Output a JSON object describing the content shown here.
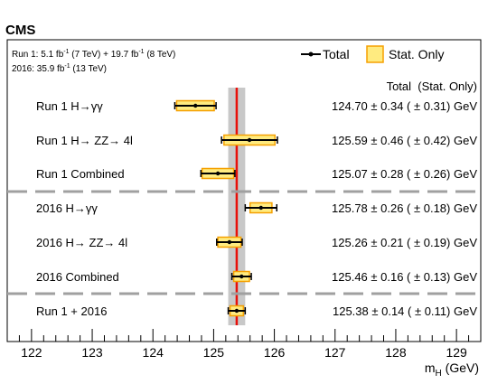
{
  "experiment": "CMS",
  "lumi_lines": [
    {
      "prefix": "Run 1: 5.1 fb",
      "sup1": "-1",
      "mid": " (7 TeV) + 19.7 fb",
      "sup2": "-1",
      "suffix": " (8 TeV)"
    },
    {
      "prefix": "2016: 35.9 fb",
      "sup1": "-1",
      "mid": " (13 TeV)",
      "sup2": "",
      "suffix": ""
    }
  ],
  "legend": {
    "total": "Total",
    "stat": "Stat. Only"
  },
  "column_header": "Total  (Stat. Only)",
  "chart_data": {
    "type": "scatter",
    "subtype": "horizontal-error-bar-summary",
    "xlabel_base": "m",
    "xlabel_sub": "H",
    "xlabel_unit": " (GeV)",
    "xlim": [
      121.6,
      129.4
    ],
    "xticks": [
      122,
      123,
      124,
      125,
      126,
      127,
      128,
      129
    ],
    "band": {
      "center": 125.38,
      "total_err": 0.14
    },
    "colors": {
      "stat_fill": "#ffeb80",
      "stat_edge": "#f5a000",
      "band": "#c8c8c8",
      "line": "#e8100a",
      "separator": "#a0a0a0",
      "marker": "#000000"
    },
    "separators_after": [
      2,
      5
    ],
    "measurements": [
      {
        "label": "Run 1 H→γγ",
        "value": 124.7,
        "total": 0.34,
        "stat": 0.31,
        "text": "124.70 ± 0.34 ( ± 0.31) GeV"
      },
      {
        "label": "Run 1 H→ ZZ→ 4l",
        "value": 125.59,
        "total": 0.46,
        "stat": 0.42,
        "text": "125.59 ± 0.46 ( ± 0.42) GeV"
      },
      {
        "label": "Run 1 Combined",
        "value": 125.07,
        "total": 0.28,
        "stat": 0.26,
        "text": "125.07 ± 0.28 ( ± 0.26) GeV"
      },
      {
        "label": "2016 H→γγ",
        "value": 125.78,
        "total": 0.26,
        "stat": 0.18,
        "text": "125.78 ± 0.26 ( ± 0.18) GeV"
      },
      {
        "label": "2016 H→ ZZ→ 4l",
        "value": 125.26,
        "total": 0.21,
        "stat": 0.19,
        "text": "125.26 ± 0.21 ( ± 0.19) GeV"
      },
      {
        "label": "2016 Combined",
        "value": 125.46,
        "total": 0.16,
        "stat": 0.13,
        "text": "125.46 ± 0.16 ( ± 0.13) GeV"
      },
      {
        "label": "Run 1 + 2016",
        "value": 125.38,
        "total": 0.14,
        "stat": 0.11,
        "text": "125.38 ± 0.14 ( ± 0.11) GeV"
      }
    ]
  }
}
